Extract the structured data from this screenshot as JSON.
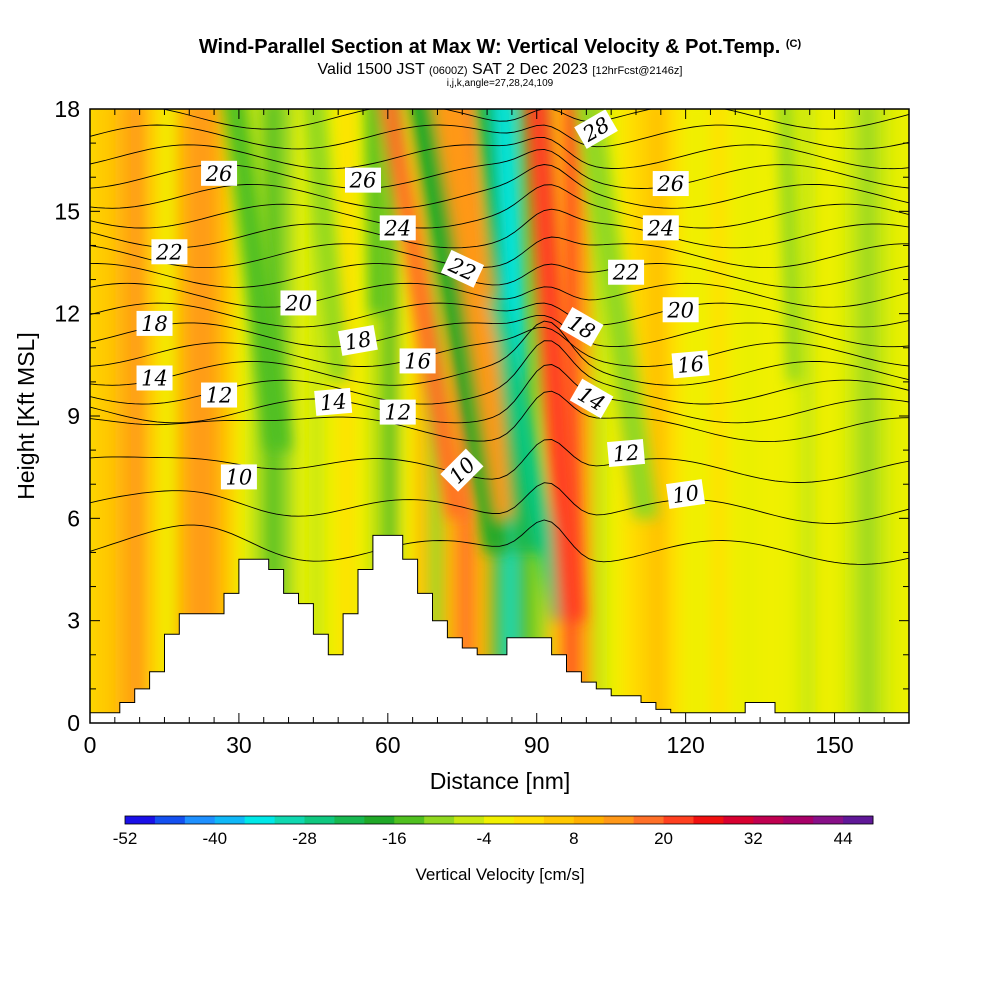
{
  "header": {
    "title": "Wind-Parallel Section at Max W: Vertical Velocity & Pot.Temp.",
    "copyright": "(C)",
    "valid_prefix": "Valid 1500 JST",
    "utc_time": "(0600Z)",
    "date": "SAT 2 Dec 2023",
    "forecast": "[12hrFcst@2146z]",
    "grid_info": "i,j,k,angle=27,28,24,109"
  },
  "chart_data": {
    "type": "heatmap",
    "title": "Wind-Parallel Section at Max W: Vertical Velocity & Pot.Temp.",
    "xlabel": "Distance [nm]",
    "ylabel": "Height [Kft MSL]",
    "xlim": [
      0,
      165
    ],
    "ylim": [
      0,
      18
    ],
    "xticks": [
      0,
      30,
      60,
      90,
      120,
      150
    ],
    "yticks": [
      0,
      3,
      6,
      9,
      12,
      15,
      18
    ],
    "colorbar": {
      "label": "Vertical Velocity [cm/s]",
      "tick_labels": [
        "-52",
        "-40",
        "-28",
        "-16",
        "-4",
        "8",
        "20",
        "32",
        "44"
      ],
      "colors": [
        "#1a10e8",
        "#1450f0",
        "#1e90ff",
        "#10b8f8",
        "#00e8e8",
        "#10d8b0",
        "#10c880",
        "#18b850",
        "#20a828",
        "#50c020",
        "#90d820",
        "#c8e810",
        "#f0f000",
        "#ffe000",
        "#ffc800",
        "#ffb000",
        "#ff9818",
        "#ff7028",
        "#ff4020",
        "#f01010",
        "#d80030",
        "#c00050",
        "#a80068",
        "#881088",
        "#601898"
      ]
    },
    "heatmap_cells": [
      [
        0,
        "#ffd000"
      ],
      [
        3,
        "#ffc800"
      ],
      [
        6,
        "#ffb010"
      ],
      [
        9,
        "#ff9818"
      ],
      [
        12,
        "#ffd000"
      ],
      [
        15,
        "#f0f000"
      ],
      [
        18,
        "#ffb000"
      ],
      [
        21,
        "#ff9a1a"
      ],
      [
        24,
        "#ffa010"
      ],
      [
        27,
        "#ffc800"
      ],
      [
        30,
        "#f0f000"
      ],
      [
        33,
        "#b0e018"
      ],
      [
        36,
        "#50c020"
      ],
      [
        39,
        "#98d820"
      ],
      [
        42,
        "#e8f000"
      ],
      [
        45,
        "#c8e810"
      ],
      [
        48,
        "#f0f000"
      ],
      [
        51,
        "#ffe000"
      ],
      [
        54,
        "#f0f000"
      ],
      [
        57,
        "#b8e010"
      ],
      [
        60,
        "#50c020"
      ],
      [
        63,
        "#f0f000"
      ],
      [
        66,
        "#ffc000"
      ],
      [
        69,
        "#98d820"
      ],
      [
        72,
        "#ffb000"
      ],
      [
        75,
        "#ff7028"
      ],
      [
        78,
        "#ffb000"
      ],
      [
        81,
        "#50c020"
      ],
      [
        84,
        "#10d8b0"
      ],
      [
        87,
        "#50c020"
      ],
      [
        90,
        "#98d820"
      ],
      [
        93,
        "#ffc000"
      ],
      [
        96,
        "#ff4020"
      ],
      [
        99,
        "#ffa010"
      ],
      [
        102,
        "#c8e810"
      ],
      [
        105,
        "#f0f000"
      ],
      [
        108,
        "#ffe000"
      ],
      [
        111,
        "#ffd000"
      ],
      [
        114,
        "#ffc000"
      ],
      [
        117,
        "#ffe000"
      ],
      [
        120,
        "#f0f000"
      ],
      [
        123,
        "#f0f000"
      ],
      [
        126,
        "#ffe000"
      ],
      [
        129,
        "#f0f000"
      ],
      [
        132,
        "#e8f000"
      ],
      [
        135,
        "#f0f000"
      ],
      [
        138,
        "#f0f000"
      ],
      [
        141,
        "#e8f000"
      ],
      [
        144,
        "#c8e810"
      ],
      [
        147,
        "#f0f000"
      ],
      [
        150,
        "#e8f000"
      ],
      [
        153,
        "#c8e810"
      ],
      [
        156,
        "#98d820"
      ],
      [
        159,
        "#c8e810"
      ],
      [
        162,
        "#e8f000"
      ]
    ],
    "streaks": [
      {
        "x0": 29,
        "y0": 18,
        "x1": 38,
        "y1": 8,
        "w": 5,
        "color": "#50c020"
      },
      {
        "x0": 45,
        "y0": 18,
        "x1": 50,
        "y1": 10,
        "w": 4,
        "color": "#90d820"
      },
      {
        "x0": 57,
        "y0": 18,
        "x1": 58,
        "y1": 12,
        "w": 3,
        "color": "#50c020"
      },
      {
        "x0": 60,
        "y0": 18,
        "x1": 74,
        "y1": 6,
        "w": 4,
        "color": "#ff7028"
      },
      {
        "x0": 66,
        "y0": 18,
        "x1": 82,
        "y1": 5,
        "w": 5,
        "color": "#20a828"
      },
      {
        "x0": 72,
        "y0": 18,
        "x1": 85,
        "y1": 6,
        "w": 6,
        "color": "#ff9818"
      },
      {
        "x0": 80,
        "y0": 18,
        "x1": 88,
        "y1": 5,
        "w": 5,
        "color": "#18b850"
      },
      {
        "x0": 83,
        "y0": 18,
        "x1": 86,
        "y1": 10,
        "w": 3,
        "color": "#00e8e8"
      },
      {
        "x0": 82,
        "y0": 12,
        "x1": 95,
        "y1": 3,
        "w": 4,
        "color": "#10c880"
      },
      {
        "x0": 90,
        "y0": 18,
        "x1": 97,
        "y1": 3,
        "w": 5,
        "color": "#ff4020"
      },
      {
        "x0": 100,
        "y0": 18,
        "x1": 112,
        "y1": 6,
        "w": 5,
        "color": "#90d820"
      },
      {
        "x0": 140,
        "y0": 18,
        "x1": 142,
        "y1": 10,
        "w": 3,
        "color": "#90d820"
      }
    ],
    "terrain_nm_kft": [
      [
        0,
        0.3
      ],
      [
        6,
        0.3
      ],
      [
        6,
        0.6
      ],
      [
        9,
        0.6
      ],
      [
        9,
        1.0
      ],
      [
        12,
        1.0
      ],
      [
        12,
        1.5
      ],
      [
        15,
        1.5
      ],
      [
        15,
        2.6
      ],
      [
        18,
        2.6
      ],
      [
        18,
        3.2
      ],
      [
        21,
        3.2
      ],
      [
        21,
        3.2
      ],
      [
        27,
        3.2
      ],
      [
        27,
        3.8
      ],
      [
        30,
        3.8
      ],
      [
        30,
        4.8
      ],
      [
        36,
        4.8
      ],
      [
        36,
        4.5
      ],
      [
        39,
        4.5
      ],
      [
        39,
        3.8
      ],
      [
        42,
        3.8
      ],
      [
        42,
        3.5
      ],
      [
        45,
        3.5
      ],
      [
        45,
        2.6
      ],
      [
        48,
        2.6
      ],
      [
        48,
        2.0
      ],
      [
        51,
        2.0
      ],
      [
        51,
        3.2
      ],
      [
        54,
        3.2
      ],
      [
        54,
        4.5
      ],
      [
        57,
        4.5
      ],
      [
        57,
        5.5
      ],
      [
        63,
        5.5
      ],
      [
        63,
        4.8
      ],
      [
        66,
        4.8
      ],
      [
        66,
        3.8
      ],
      [
        69,
        3.8
      ],
      [
        69,
        3.0
      ],
      [
        72,
        3.0
      ],
      [
        72,
        2.5
      ],
      [
        75,
        2.5
      ],
      [
        75,
        2.2
      ],
      [
        78,
        2.2
      ],
      [
        78,
        2.0
      ],
      [
        84,
        2.0
      ],
      [
        84,
        2.5
      ],
      [
        93,
        2.5
      ],
      [
        93,
        2.0
      ],
      [
        96,
        2.0
      ],
      [
        96,
        1.5
      ],
      [
        99,
        1.5
      ],
      [
        99,
        1.2
      ],
      [
        102,
        1.2
      ],
      [
        102,
        1.0
      ],
      [
        105,
        1.0
      ],
      [
        105,
        0.8
      ],
      [
        111,
        0.8
      ],
      [
        111,
        0.6
      ],
      [
        114,
        0.6
      ],
      [
        114,
        0.4
      ],
      [
        117,
        0.4
      ],
      [
        117,
        0.3
      ],
      [
        123,
        0.3
      ],
      [
        123,
        0.3
      ],
      [
        132,
        0.3
      ],
      [
        132,
        0.6
      ],
      [
        138,
        0.6
      ],
      [
        138,
        0.3
      ],
      [
        144,
        0.3
      ],
      [
        165,
        0.3
      ]
    ],
    "contour_levels": [
      9,
      10,
      11,
      12,
      13,
      14,
      15,
      16,
      17,
      18,
      19,
      20,
      21,
      22,
      23,
      24,
      25,
      26,
      27,
      28
    ],
    "contour_labels": [
      {
        "text": "26",
        "x": 26,
        "y": 16.1,
        "rot": 0
      },
      {
        "text": "26",
        "x": 55,
        "y": 15.9,
        "rot": 0
      },
      {
        "text": "26",
        "x": 117,
        "y": 15.8,
        "rot": 0
      },
      {
        "text": "28",
        "x": 102,
        "y": 17.4,
        "rot": -30
      },
      {
        "text": "24",
        "x": 62,
        "y": 14.5,
        "rot": 0
      },
      {
        "text": "24",
        "x": 115,
        "y": 14.5,
        "rot": 0
      },
      {
        "text": "22",
        "x": 16,
        "y": 13.8,
        "rot": 0
      },
      {
        "text": "22",
        "x": 75,
        "y": 13.3,
        "rot": 25
      },
      {
        "text": "22",
        "x": 108,
        "y": 13.2,
        "rot": 0
      },
      {
        "text": "20",
        "x": 42,
        "y": 12.3,
        "rot": 0
      },
      {
        "text": "20",
        "x": 119,
        "y": 12.1,
        "rot": 0
      },
      {
        "text": "18",
        "x": 13,
        "y": 11.7,
        "rot": 0
      },
      {
        "text": "18",
        "x": 54,
        "y": 11.2,
        "rot": -10
      },
      {
        "text": "18",
        "x": 99,
        "y": 11.6,
        "rot": 30
      },
      {
        "text": "16",
        "x": 66,
        "y": 10.6,
        "rot": 0
      },
      {
        "text": "16",
        "x": 121,
        "y": 10.5,
        "rot": -5
      },
      {
        "text": "14",
        "x": 13,
        "y": 10.1,
        "rot": 0
      },
      {
        "text": "14",
        "x": 49,
        "y": 9.4,
        "rot": -5
      },
      {
        "text": "14",
        "x": 101,
        "y": 9.5,
        "rot": 30
      },
      {
        "text": "12",
        "x": 26,
        "y": 9.6,
        "rot": 0
      },
      {
        "text": "12",
        "x": 62,
        "y": 9.1,
        "rot": 0
      },
      {
        "text": "12",
        "x": 108,
        "y": 7.9,
        "rot": -5
      },
      {
        "text": "10",
        "x": 30,
        "y": 7.2,
        "rot": 0
      },
      {
        "text": "10",
        "x": 75,
        "y": 7.4,
        "rot": -45
      },
      {
        "text": "10",
        "x": 120,
        "y": 6.7,
        "rot": -8
      }
    ]
  }
}
